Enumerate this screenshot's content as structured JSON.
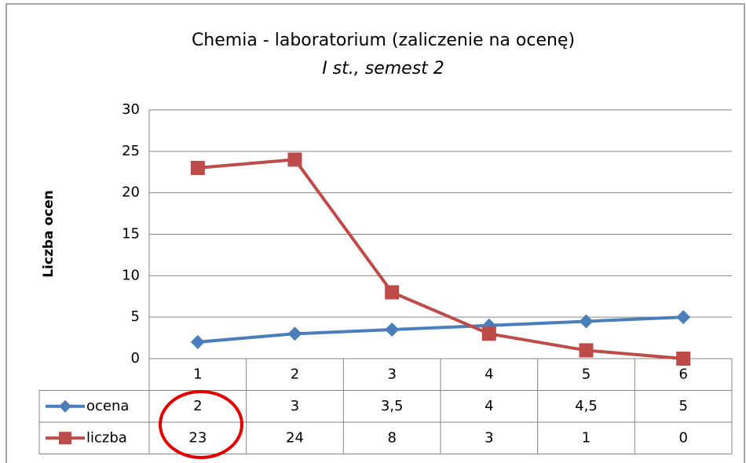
{
  "chart_data": {
    "type": "line",
    "title": "Chemia - laboratorium (zaliczenie na ocenę)",
    "subtitle": "I st., semest 2",
    "y_label": "Liczba ocen",
    "categories": [
      1,
      2,
      3,
      4,
      5,
      6
    ],
    "series": [
      {
        "name": "ocena",
        "color": "#4a7ebb",
        "marker": "diamond",
        "values": [
          2,
          3,
          3.5,
          4,
          4.5,
          5
        ],
        "value_labels": [
          "2",
          "3",
          "3,5",
          "4",
          "4,5",
          "5"
        ]
      },
      {
        "name": "liczba",
        "color": "#be4b48",
        "marker": "square",
        "values": [
          23,
          24,
          8,
          3,
          1,
          0
        ]
      }
    ],
    "ylim": [
      0,
      30
    ],
    "yticks": [
      0,
      5,
      10,
      15,
      20,
      25,
      30
    ],
    "grid": true,
    "data_table": true
  }
}
